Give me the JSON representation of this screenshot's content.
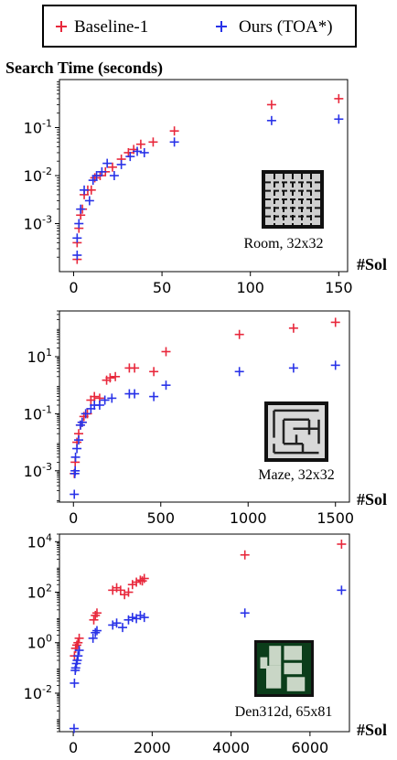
{
  "legend": {
    "items": [
      {
        "label": "Baseline-1",
        "color": "#e8283c"
      },
      {
        "label": "Ours (TOA*)",
        "color": "#2832e8"
      }
    ]
  },
  "ylabel": "Search Time (seconds)",
  "xlabel": "#Sol",
  "chart_data": [
    {
      "type": "scatter",
      "y_scale": "log",
      "xlim": [
        -8,
        155
      ],
      "ylim": [
        0.0001,
        1.0
      ],
      "x_ticks": [
        "0",
        "50",
        "100",
        "150"
      ],
      "y_ticks": [
        "10^-3",
        "10^-2",
        "10^-1"
      ],
      "annotation": "Room, 32x32",
      "map_icon": "room-map",
      "series": [
        {
          "name": "Baseline-1",
          "color": "#e8283c",
          "marker": "plus",
          "points": [
            [
              2,
              0.00018
            ],
            [
              2,
              0.0004
            ],
            [
              3,
              0.0008
            ],
            [
              4,
              0.0015
            ],
            [
              5,
              0.002
            ],
            [
              6,
              0.004
            ],
            [
              8,
              0.005
            ],
            [
              10,
              0.005
            ],
            [
              12,
              0.009
            ],
            [
              15,
              0.01
            ],
            [
              18,
              0.012
            ],
            [
              22,
              0.015
            ],
            [
              27,
              0.022
            ],
            [
              31,
              0.03
            ],
            [
              34,
              0.035
            ],
            [
              38,
              0.045
            ],
            [
              45,
              0.05
            ],
            [
              57,
              0.085
            ],
            [
              112,
              0.3
            ],
            [
              150,
              0.4
            ]
          ]
        },
        {
          "name": "Ours (TOA*)",
          "color": "#2832e8",
          "marker": "plus",
          "points": [
            [
              2,
              0.00022
            ],
            [
              2,
              0.0005
            ],
            [
              3,
              0.001
            ],
            [
              4,
              0.002
            ],
            [
              6,
              0.005
            ],
            [
              9,
              0.003
            ],
            [
              11,
              0.008
            ],
            [
              13,
              0.01
            ],
            [
              16,
              0.012
            ],
            [
              19,
              0.018
            ],
            [
              23,
              0.01
            ],
            [
              27,
              0.017
            ],
            [
              32,
              0.025
            ],
            [
              36,
              0.032
            ],
            [
              40,
              0.03
            ],
            [
              57,
              0.05
            ],
            [
              112,
              0.14
            ],
            [
              150,
              0.15
            ]
          ]
        }
      ]
    },
    {
      "type": "scatter",
      "y_scale": "log",
      "xlim": [
        -80,
        1580
      ],
      "ylim": [
        8e-05,
        400
      ],
      "x_ticks": [
        "0",
        "500",
        "1000",
        "1500"
      ],
      "y_ticks": [
        "10^-3",
        "10^-1",
        "10^1"
      ],
      "annotation": "Maze, 32x32",
      "map_icon": "maze-map",
      "series": [
        {
          "name": "Baseline-1",
          "color": "#e8283c",
          "marker": "plus",
          "points": [
            [
              5,
              0.0008
            ],
            [
              10,
              0.002
            ],
            [
              20,
              0.01
            ],
            [
              30,
              0.02
            ],
            [
              40,
              0.04
            ],
            [
              50,
              0.05
            ],
            [
              60,
              0.08
            ],
            [
              80,
              0.1
            ],
            [
              100,
              0.3
            ],
            [
              120,
              0.4
            ],
            [
              150,
              0.35
            ],
            [
              190,
              1.5
            ],
            [
              210,
              1.8
            ],
            [
              240,
              2
            ],
            [
              320,
              4
            ],
            [
              350,
              4
            ],
            [
              460,
              3
            ],
            [
              530,
              15
            ],
            [
              950,
              60
            ],
            [
              1260,
              100
            ],
            [
              1500,
              160
            ]
          ]
        },
        {
          "name": "Ours (TOA*)",
          "color": "#2832e8",
          "marker": "plus",
          "points": [
            [
              5,
              0.00015
            ],
            [
              8,
              0.0008
            ],
            [
              10,
              0.001
            ],
            [
              12,
              0.003
            ],
            [
              20,
              0.006
            ],
            [
              30,
              0.012
            ],
            [
              40,
              0.04
            ],
            [
              50,
              0.05
            ],
            [
              70,
              0.1
            ],
            [
              100,
              0.15
            ],
            [
              120,
              0.2
            ],
            [
              150,
              0.2
            ],
            [
              180,
              0.3
            ],
            [
              220,
              0.35
            ],
            [
              320,
              0.5
            ],
            [
              350,
              0.5
            ],
            [
              460,
              0.4
            ],
            [
              530,
              1.0
            ],
            [
              950,
              3
            ],
            [
              1260,
              4
            ],
            [
              1500,
              5
            ]
          ]
        }
      ]
    },
    {
      "type": "scatter",
      "y_scale": "log",
      "xlim": [
        -350,
        7000
      ],
      "ylim": [
        0.0003,
        20000
      ],
      "x_ticks": [
        "0",
        "2000",
        "4000",
        "6000"
      ],
      "y_ticks": [
        "10^-2",
        "10^0",
        "10^2",
        "10^4"
      ],
      "annotation": "Den312d, 65x81",
      "map_icon": "den-map",
      "series": [
        {
          "name": "Baseline-1",
          "color": "#e8283c",
          "marker": "plus",
          "points": [
            [
              30,
              0.3
            ],
            [
              60,
              0.6
            ],
            [
              90,
              0.8
            ],
            [
              120,
              1
            ],
            [
              150,
              1.5
            ],
            [
              520,
              8
            ],
            [
              560,
              12
            ],
            [
              600,
              15
            ],
            [
              1000,
              120
            ],
            [
              1100,
              150
            ],
            [
              1200,
              120
            ],
            [
              1300,
              80
            ],
            [
              1400,
              100
            ],
            [
              1500,
              200
            ],
            [
              1600,
              250
            ],
            [
              1700,
              300
            ],
            [
              1750,
              280
            ],
            [
              1800,
              350
            ],
            [
              4350,
              3000
            ],
            [
              6800,
              8000
            ]
          ]
        },
        {
          "name": "Ours (TOA*)",
          "color": "#2832e8",
          "marker": "plus",
          "points": [
            [
              20,
              0.0004
            ],
            [
              30,
              0.025
            ],
            [
              50,
              0.08
            ],
            [
              60,
              0.1
            ],
            [
              80,
              0.15
            ],
            [
              100,
              0.2
            ],
            [
              120,
              0.3
            ],
            [
              150,
              0.5
            ],
            [
              500,
              1.5
            ],
            [
              560,
              2.5
            ],
            [
              600,
              3
            ],
            [
              1000,
              5
            ],
            [
              1100,
              6
            ],
            [
              1250,
              4
            ],
            [
              1400,
              8
            ],
            [
              1500,
              10
            ],
            [
              1600,
              9
            ],
            [
              1700,
              12
            ],
            [
              1800,
              10
            ],
            [
              4350,
              15
            ],
            [
              6800,
              120
            ]
          ]
        }
      ]
    }
  ]
}
